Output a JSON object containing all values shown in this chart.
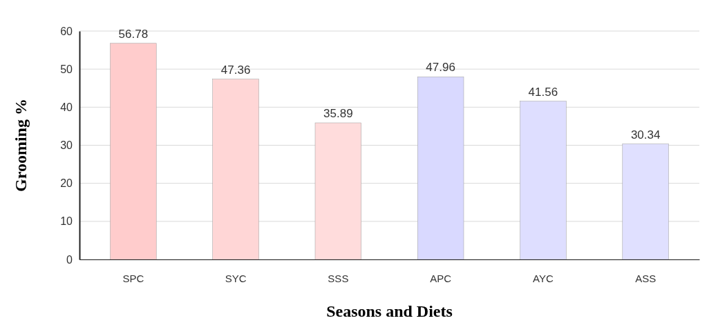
{
  "chart_data": {
    "type": "bar",
    "xlabel": "Seasons and Diets",
    "ylabel": "Grooming %",
    "categories": [
      "SPC",
      "SYC",
      "SSS",
      "APC",
      "AYC",
      "ASS"
    ],
    "values": [
      56.78,
      47.36,
      35.89,
      47.96,
      41.56,
      30.34
    ],
    "colors": [
      "#ffcccc",
      "#ffd6d6",
      "#ffdcdc",
      "#d9d9ff",
      "#dedeff",
      "#e0e0ff"
    ],
    "data_labels": true,
    "ylim": [
      0,
      60
    ],
    "yticks": [
      0,
      10,
      20,
      30,
      40,
      50,
      60
    ],
    "grid": "y"
  }
}
